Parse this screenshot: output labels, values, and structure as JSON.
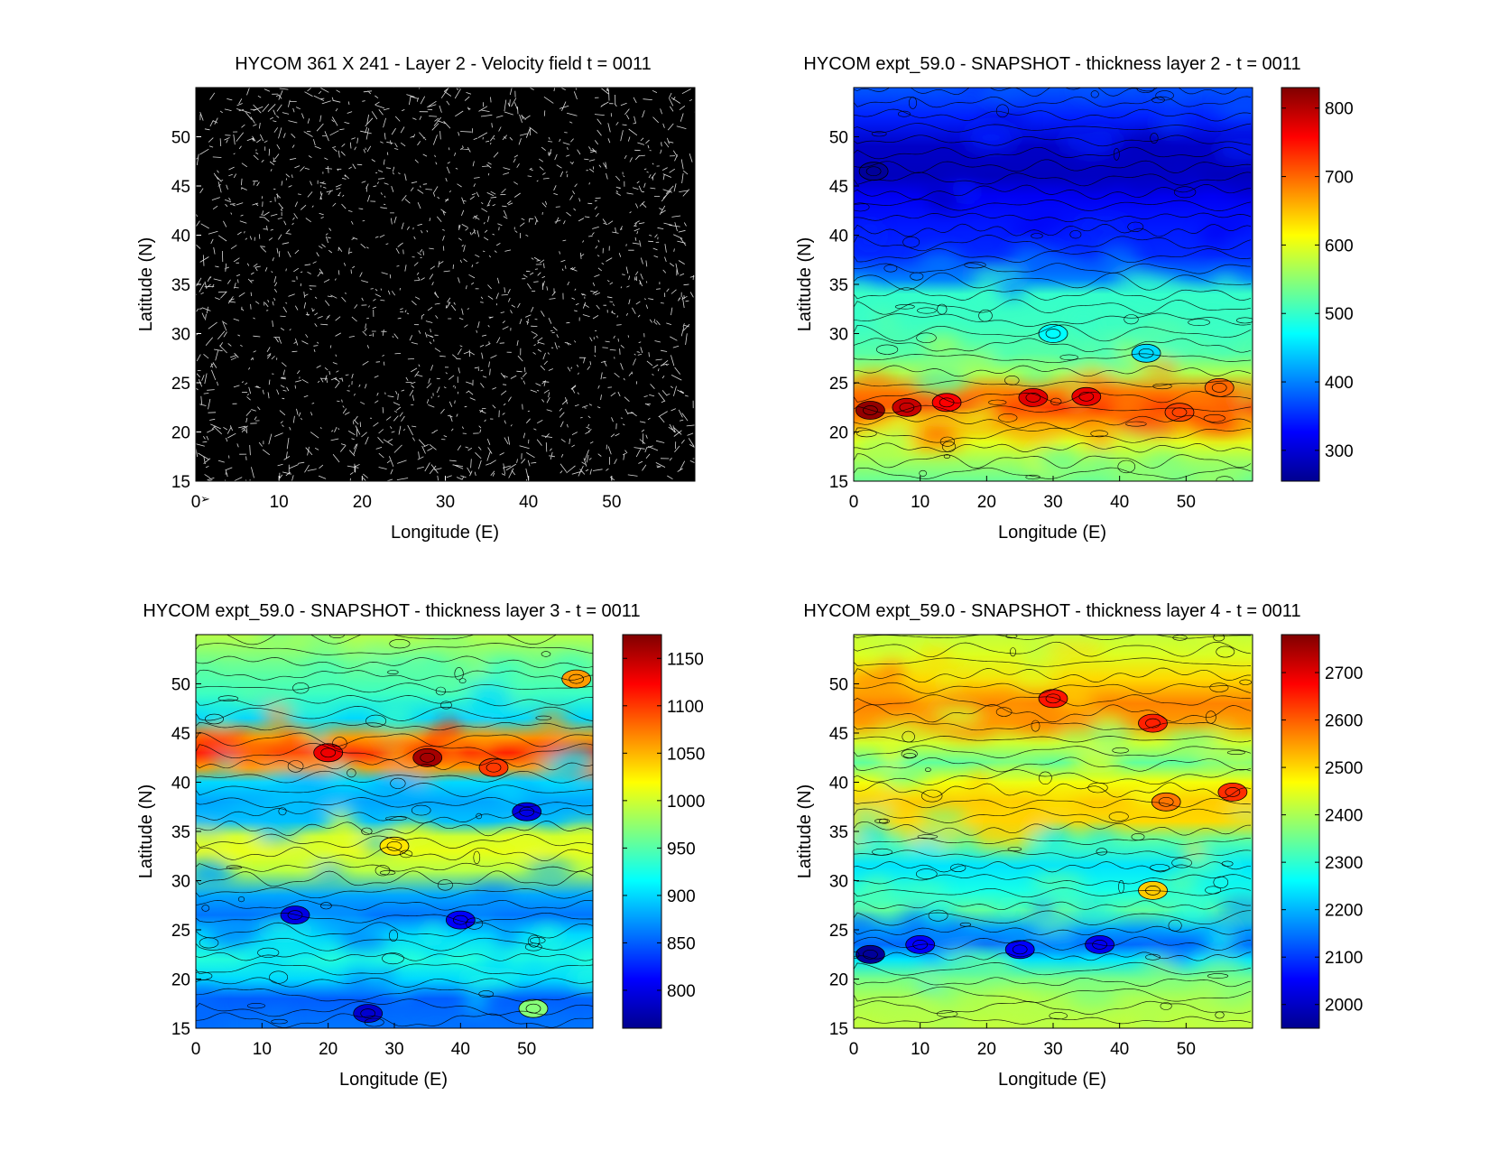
{
  "chart_data": [
    {
      "type": "quiver",
      "title": "HYCOM 361 X 241 - Layer 2 - Velocity field  t = 0011",
      "xlabel": "Longitude (E)",
      "ylabel": "Latitude (N)",
      "xlim": [
        0,
        60
      ],
      "ylim": [
        15,
        55
      ],
      "xticks": [
        0,
        10,
        20,
        30,
        40,
        50
      ],
      "yticks": [
        15,
        20,
        25,
        30,
        35,
        40,
        45,
        50
      ],
      "background": "#000000",
      "arrow_color": "#ffffff",
      "colorbar": null
    },
    {
      "type": "contourf",
      "title": "HYCOM expt_59.0 - SNAPSHOT - thickness layer 2 - t = 0011",
      "xlabel": "Longitude (E)",
      "ylabel": "Latitude (N)",
      "xlim": [
        0,
        60
      ],
      "ylim": [
        15,
        55
      ],
      "xticks": [
        0,
        10,
        20,
        30,
        40,
        50
      ],
      "yticks": [
        15,
        20,
        25,
        30,
        35,
        40,
        45,
        50
      ],
      "colormap": "jet",
      "colorbar": {
        "range": [
          255,
          830
        ],
        "ticks": [
          300,
          400,
          500,
          600,
          700,
          800
        ]
      },
      "bands": [
        {
          "lat": 15,
          "value": 530
        },
        {
          "lat": 17,
          "value": 560
        },
        {
          "lat": 19,
          "value": 600
        },
        {
          "lat": 21,
          "value": 670
        },
        {
          "lat": 22.5,
          "value": 730
        },
        {
          "lat": 24,
          "value": 690
        },
        {
          "lat": 26,
          "value": 570
        },
        {
          "lat": 28,
          "value": 520
        },
        {
          "lat": 31,
          "value": 505
        },
        {
          "lat": 34,
          "value": 500
        },
        {
          "lat": 35.5,
          "value": 400
        },
        {
          "lat": 38,
          "value": 350
        },
        {
          "lat": 41,
          "value": 340
        },
        {
          "lat": 44,
          "value": 320
        },
        {
          "lat": 46,
          "value": 285
        },
        {
          "lat": 49,
          "value": 290
        },
        {
          "lat": 52,
          "value": 345
        },
        {
          "lat": 55,
          "value": 375
        }
      ],
      "features": [
        {
          "lon": 2.5,
          "lat": 22.2,
          "value": 820
        },
        {
          "lon": 8,
          "lat": 22.5,
          "value": 790
        },
        {
          "lon": 14,
          "lat": 23,
          "value": 760
        },
        {
          "lon": 27,
          "lat": 23.5,
          "value": 775
        },
        {
          "lon": 35,
          "lat": 23.6,
          "value": 770
        },
        {
          "lon": 49,
          "lat": 22,
          "value": 720
        },
        {
          "lon": 55,
          "lat": 24.5,
          "value": 700
        },
        {
          "lon": 3,
          "lat": 46.5,
          "value": 262
        },
        {
          "lon": 30,
          "lat": 30,
          "value": 470
        },
        {
          "lon": 44,
          "lat": 28,
          "value": 450
        }
      ]
    },
    {
      "type": "contourf",
      "title": "HYCOM expt_59.0 - SNAPSHOT - thickness layer 3 - t = 0011",
      "xlabel": "Longitude (E)",
      "ylabel": "Latitude (N)",
      "xlim": [
        0,
        60
      ],
      "ylim": [
        15,
        55
      ],
      "xticks": [
        0,
        10,
        20,
        30,
        40,
        50
      ],
      "yticks": [
        15,
        20,
        25,
        30,
        35,
        40,
        45,
        50
      ],
      "colormap": "jet",
      "colorbar": {
        "range": [
          760,
          1175
        ],
        "ticks": [
          800,
          850,
          900,
          950,
          1000,
          1050,
          1100,
          1150
        ]
      },
      "bands": [
        {
          "lat": 15,
          "value": 860
        },
        {
          "lat": 18,
          "value": 850
        },
        {
          "lat": 20,
          "value": 900
        },
        {
          "lat": 22,
          "value": 930
        },
        {
          "lat": 24.5,
          "value": 900
        },
        {
          "lat": 26.5,
          "value": 860
        },
        {
          "lat": 28.5,
          "value": 880
        },
        {
          "lat": 31,
          "value": 990
        },
        {
          "lat": 33,
          "value": 1010
        },
        {
          "lat": 34.5,
          "value": 1000
        },
        {
          "lat": 36,
          "value": 890
        },
        {
          "lat": 38,
          "value": 880
        },
        {
          "lat": 40,
          "value": 900
        },
        {
          "lat": 41.5,
          "value": 1060
        },
        {
          "lat": 43,
          "value": 1110
        },
        {
          "lat": 44.5,
          "value": 1060
        },
        {
          "lat": 46.5,
          "value": 900
        },
        {
          "lat": 49,
          "value": 940
        },
        {
          "lat": 52,
          "value": 960
        },
        {
          "lat": 55,
          "value": 990
        }
      ],
      "features": [
        {
          "lon": 35,
          "lat": 42.5,
          "value": 1160
        },
        {
          "lon": 20,
          "lat": 43,
          "value": 1130
        },
        {
          "lon": 45,
          "lat": 41.5,
          "value": 1100
        },
        {
          "lon": 57.5,
          "lat": 50.5,
          "value": 1060
        },
        {
          "lon": 50,
          "lat": 37,
          "value": 800
        },
        {
          "lon": 15,
          "lat": 26.5,
          "value": 800
        },
        {
          "lon": 40,
          "lat": 26,
          "value": 810
        },
        {
          "lon": 26,
          "lat": 16.5,
          "value": 790
        },
        {
          "lon": 51,
          "lat": 17,
          "value": 970
        },
        {
          "lon": 30,
          "lat": 33.5,
          "value": 1030
        }
      ]
    },
    {
      "type": "contourf",
      "title": "HYCOM expt_59.0 - SNAPSHOT - thickness layer 4 - t = 0011",
      "xlabel": "Longitude (E)",
      "ylabel": "Latitude (N)",
      "xlim": [
        0,
        60
      ],
      "ylim": [
        15,
        55
      ],
      "xticks": [
        0,
        10,
        20,
        30,
        40,
        50
      ],
      "yticks": [
        15,
        20,
        25,
        30,
        35,
        40,
        45,
        50
      ],
      "colormap": "jet",
      "colorbar": {
        "range": [
          1950,
          2780
        ],
        "ticks": [
          2000,
          2100,
          2200,
          2300,
          2400,
          2500,
          2600,
          2700
        ]
      },
      "bands": [
        {
          "lat": 15,
          "value": 2420
        },
        {
          "lat": 18,
          "value": 2400
        },
        {
          "lat": 20,
          "value": 2360
        },
        {
          "lat": 22,
          "value": 2240
        },
        {
          "lat": 23.5,
          "value": 2140
        },
        {
          "lat": 25,
          "value": 2180
        },
        {
          "lat": 27,
          "value": 2340
        },
        {
          "lat": 29,
          "value": 2280
        },
        {
          "lat": 31.5,
          "value": 2240
        },
        {
          "lat": 34,
          "value": 2330
        },
        {
          "lat": 36,
          "value": 2500
        },
        {
          "lat": 38,
          "value": 2510
        },
        {
          "lat": 40,
          "value": 2460
        },
        {
          "lat": 42,
          "value": 2340
        },
        {
          "lat": 44,
          "value": 2430
        },
        {
          "lat": 46,
          "value": 2550
        },
        {
          "lat": 48,
          "value": 2570
        },
        {
          "lat": 50.5,
          "value": 2500
        },
        {
          "lat": 53,
          "value": 2440
        },
        {
          "lat": 55,
          "value": 2420
        }
      ],
      "features": [
        {
          "lon": 2.5,
          "lat": 22.5,
          "value": 1960
        },
        {
          "lon": 10,
          "lat": 23.5,
          "value": 2050
        },
        {
          "lon": 25,
          "lat": 23,
          "value": 2050
        },
        {
          "lon": 37,
          "lat": 23.5,
          "value": 2040
        },
        {
          "lon": 30,
          "lat": 48.5,
          "value": 2660
        },
        {
          "lon": 45,
          "lat": 46,
          "value": 2650
        },
        {
          "lon": 57,
          "lat": 39,
          "value": 2640
        },
        {
          "lon": 47,
          "lat": 38,
          "value": 2580
        },
        {
          "lon": 45,
          "lat": 29,
          "value": 2510
        }
      ]
    }
  ]
}
